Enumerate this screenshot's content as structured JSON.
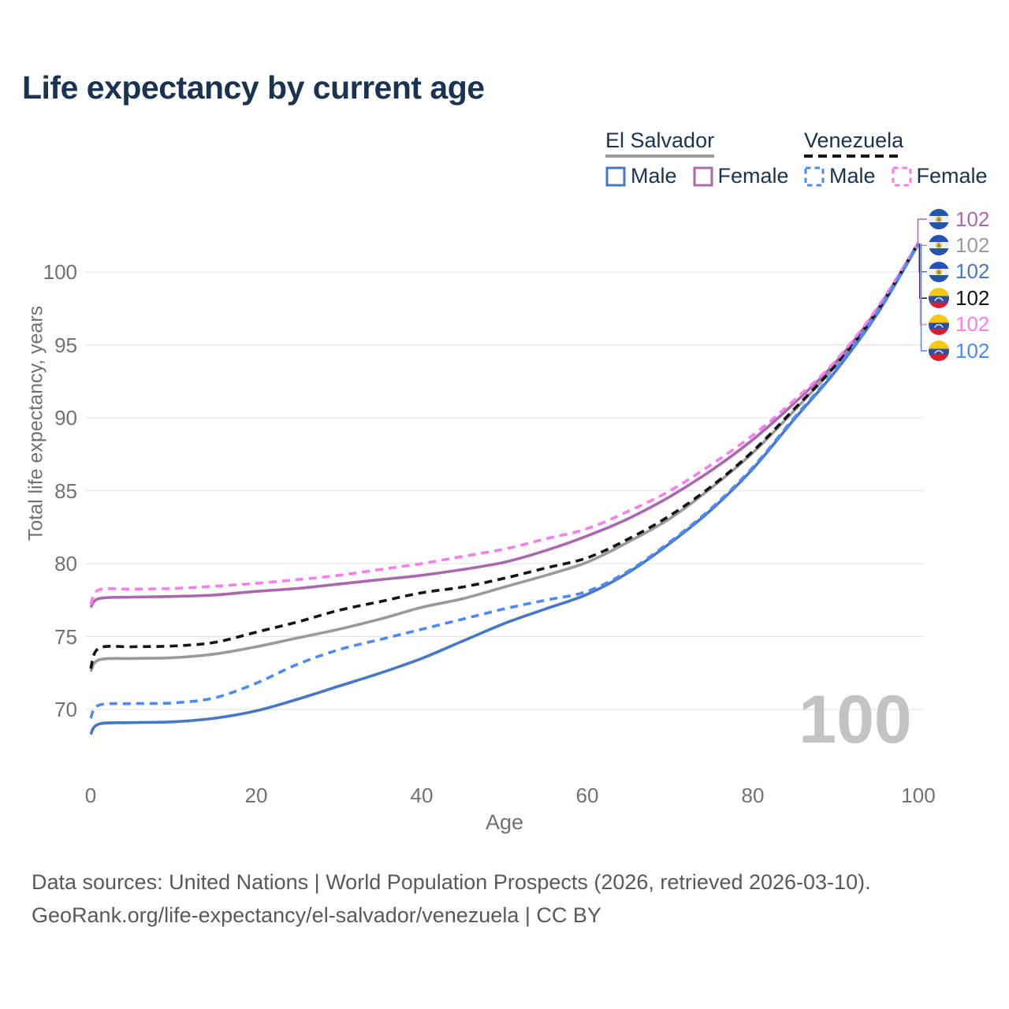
{
  "title": "Life expectancy by current age",
  "legend": {
    "groups": [
      {
        "id": "el-salvador",
        "label": "El Salvador",
        "underline": {
          "color": "#9a9a9a",
          "dashed": false
        },
        "items": [
          {
            "id": "es-male",
            "label": "Male",
            "color": "#4678c8",
            "dashed": false
          },
          {
            "id": "es-female",
            "label": "Female",
            "color": "#ac68ae",
            "dashed": false
          }
        ]
      },
      {
        "id": "venezuela",
        "label": "Venezuela",
        "underline": {
          "color": "#141414",
          "dashed": true
        },
        "items": [
          {
            "id": "ve-male",
            "label": "Male",
            "color": "#4b8af8",
            "dashed": true
          },
          {
            "id": "ve-female",
            "label": "Female",
            "color": "#f97cf0",
            "dashed": true
          }
        ]
      }
    ]
  },
  "chart_data": {
    "type": "line",
    "xlabel": "Age",
    "ylabel": "Total life expectancy, years",
    "xticks": [
      0,
      20,
      40,
      60,
      80,
      100
    ],
    "yticks": [
      70,
      75,
      80,
      85,
      90,
      95,
      100
    ],
    "xlim": [
      0,
      100
    ],
    "ylim": [
      67,
      103.5
    ],
    "grid": "horizontal",
    "hover_age_label": "100",
    "series": [
      {
        "id": "es-total",
        "name": "El Salvador",
        "color": "#9a9a9a",
        "dashed": false,
        "points": [
          [
            0,
            72.6
          ],
          [
            1,
            73.4
          ],
          [
            5,
            73.5
          ],
          [
            10,
            73.55
          ],
          [
            15,
            73.8
          ],
          [
            20,
            74.3
          ],
          [
            25,
            74.9
          ],
          [
            30,
            75.5
          ],
          [
            35,
            76.2
          ],
          [
            40,
            77.0
          ],
          [
            45,
            77.6
          ],
          [
            50,
            78.4
          ],
          [
            55,
            79.2
          ],
          [
            60,
            80.1
          ],
          [
            65,
            81.5
          ],
          [
            70,
            83.1
          ],
          [
            75,
            85.2
          ],
          [
            80,
            87.6
          ],
          [
            85,
            90.5
          ],
          [
            90,
            93.6
          ],
          [
            95,
            97.3
          ],
          [
            100,
            102
          ]
        ]
      },
      {
        "id": "es-female",
        "name": "El Salvador Female",
        "color": "#ac68ae",
        "dashed": false,
        "points": [
          [
            0,
            77.0
          ],
          [
            1,
            77.6
          ],
          [
            5,
            77.7
          ],
          [
            10,
            77.75
          ],
          [
            15,
            77.85
          ],
          [
            20,
            78.1
          ],
          [
            25,
            78.3
          ],
          [
            30,
            78.6
          ],
          [
            35,
            78.9
          ],
          [
            40,
            79.2
          ],
          [
            45,
            79.6
          ],
          [
            50,
            80.1
          ],
          [
            55,
            80.9
          ],
          [
            60,
            81.9
          ],
          [
            65,
            83.1
          ],
          [
            70,
            84.6
          ],
          [
            75,
            86.4
          ],
          [
            80,
            88.5
          ],
          [
            85,
            91.0
          ],
          [
            90,
            93.8
          ],
          [
            95,
            97.4
          ],
          [
            100,
            102
          ]
        ]
      },
      {
        "id": "es-male",
        "name": "El Salvador Male",
        "color": "#4678c8",
        "dashed": false,
        "points": [
          [
            0,
            68.3
          ],
          [
            1,
            69.0
          ],
          [
            5,
            69.1
          ],
          [
            10,
            69.15
          ],
          [
            15,
            69.4
          ],
          [
            20,
            69.9
          ],
          [
            25,
            70.7
          ],
          [
            30,
            71.6
          ],
          [
            35,
            72.5
          ],
          [
            40,
            73.5
          ],
          [
            45,
            74.7
          ],
          [
            50,
            75.9
          ],
          [
            55,
            76.9
          ],
          [
            60,
            77.9
          ],
          [
            65,
            79.4
          ],
          [
            70,
            81.4
          ],
          [
            75,
            83.7
          ],
          [
            80,
            86.5
          ],
          [
            85,
            89.9
          ],
          [
            90,
            93.2
          ],
          [
            95,
            97.1
          ],
          [
            100,
            101.9
          ]
        ]
      },
      {
        "id": "ve-total",
        "name": "Venezuela",
        "color": "#141414",
        "dashed": true,
        "points": [
          [
            0,
            72.8
          ],
          [
            1,
            74.2
          ],
          [
            5,
            74.3
          ],
          [
            10,
            74.35
          ],
          [
            15,
            74.6
          ],
          [
            20,
            75.3
          ],
          [
            25,
            76.0
          ],
          [
            30,
            76.8
          ],
          [
            35,
            77.4
          ],
          [
            40,
            78.0
          ],
          [
            45,
            78.4
          ],
          [
            50,
            79.0
          ],
          [
            55,
            79.7
          ],
          [
            60,
            80.4
          ],
          [
            65,
            81.7
          ],
          [
            70,
            83.3
          ],
          [
            75,
            85.3
          ],
          [
            80,
            87.7
          ],
          [
            85,
            90.6
          ],
          [
            90,
            93.6
          ],
          [
            95,
            97.3
          ],
          [
            100,
            102
          ]
        ]
      },
      {
        "id": "ve-female",
        "name": "Venezuela Female",
        "color": "#f97cf0",
        "dashed": true,
        "points": [
          [
            0,
            77.2
          ],
          [
            1,
            78.2
          ],
          [
            5,
            78.25
          ],
          [
            10,
            78.3
          ],
          [
            15,
            78.45
          ],
          [
            20,
            78.65
          ],
          [
            25,
            78.9
          ],
          [
            30,
            79.2
          ],
          [
            35,
            79.6
          ],
          [
            40,
            80.0
          ],
          [
            45,
            80.5
          ],
          [
            50,
            81.0
          ],
          [
            55,
            81.7
          ],
          [
            60,
            82.4
          ],
          [
            65,
            83.6
          ],
          [
            70,
            85.0
          ],
          [
            75,
            86.8
          ],
          [
            80,
            88.8
          ],
          [
            85,
            91.2
          ],
          [
            90,
            93.9
          ],
          [
            95,
            97.5
          ],
          [
            100,
            102
          ]
        ]
      },
      {
        "id": "ve-male",
        "name": "Venezuela Male",
        "color": "#4b8af8",
        "dashed": true,
        "points": [
          [
            0,
            69.4
          ],
          [
            1,
            70.3
          ],
          [
            5,
            70.4
          ],
          [
            10,
            70.45
          ],
          [
            15,
            70.8
          ],
          [
            20,
            71.8
          ],
          [
            25,
            73.1
          ],
          [
            30,
            74.1
          ],
          [
            35,
            74.8
          ],
          [
            40,
            75.5
          ],
          [
            45,
            76.2
          ],
          [
            50,
            76.9
          ],
          [
            55,
            77.5
          ],
          [
            60,
            78.1
          ],
          [
            65,
            79.5
          ],
          [
            70,
            81.5
          ],
          [
            75,
            83.8
          ],
          [
            80,
            86.6
          ],
          [
            85,
            90.0
          ],
          [
            90,
            93.3
          ],
          [
            95,
            97.2
          ],
          [
            100,
            101.9
          ]
        ]
      }
    ],
    "end_labels": [
      {
        "series": "es-female",
        "flag": "sv",
        "color": "#ac68ae",
        "value": "102"
      },
      {
        "series": "es-total",
        "flag": "sv",
        "color": "#9a9a9a",
        "value": "102"
      },
      {
        "series": "es-male",
        "flag": "sv",
        "color": "#4678c8",
        "value": "102"
      },
      {
        "series": "ve-total",
        "flag": "ve",
        "color": "#141414",
        "value": "102"
      },
      {
        "series": "ve-female",
        "flag": "ve",
        "color": "#f97cf0",
        "value": "102"
      },
      {
        "series": "ve-male",
        "flag": "ve",
        "color": "#4b8af8",
        "value": "102"
      }
    ]
  },
  "footer": {
    "line1": "Data sources: United Nations | World Population Prospects (2026, retrieved 2026-03-10).",
    "line2": "GeoRank.org/life-expectancy/el-salvador/venezuela | CC BY"
  }
}
